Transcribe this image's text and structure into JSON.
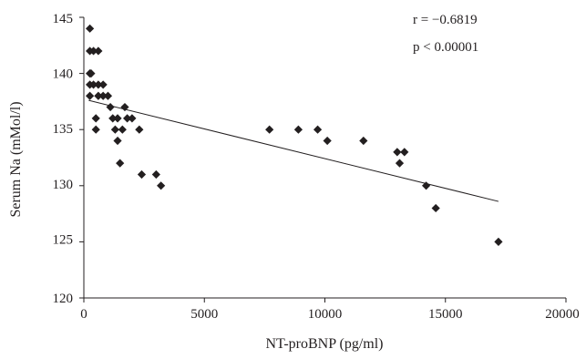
{
  "chart_data": {
    "type": "scatter",
    "xlabel": "NT-proBNP (pg/ml)",
    "ylabel": "Serum Na (mMol/l)",
    "xlim": [
      0,
      20000
    ],
    "ylim": [
      120,
      145
    ],
    "x_ticks": [
      "0",
      "5000",
      "10000",
      "15000",
      "20000"
    ],
    "y_ticks": [
      "120",
      "125",
      "130",
      "135",
      "140",
      "145"
    ],
    "grid": false,
    "legend": "none",
    "marker": "diamond",
    "marker_color": "#231f20",
    "annotations": [
      "r = −0.6819",
      "p < 0.00001"
    ],
    "trendline": {
      "type": "linear",
      "x": [
        200,
        17200
      ],
      "y": [
        137.6,
        128.6
      ]
    },
    "series": [
      {
        "points": [
          [
            250,
            144
          ],
          [
            250,
            142
          ],
          [
            250,
            140
          ],
          [
            250,
            139
          ],
          [
            250,
            138
          ],
          [
            300,
            140
          ],
          [
            400,
            142
          ],
          [
            400,
            139
          ],
          [
            500,
            136
          ],
          [
            500,
            135
          ],
          [
            600,
            142
          ],
          [
            600,
            139
          ],
          [
            600,
            138
          ],
          [
            800,
            139
          ],
          [
            800,
            138
          ],
          [
            1000,
            138
          ],
          [
            1100,
            137
          ],
          [
            1200,
            136
          ],
          [
            1300,
            135
          ],
          [
            1400,
            134
          ],
          [
            1400,
            136
          ],
          [
            1500,
            132
          ],
          [
            1600,
            135
          ],
          [
            1700,
            137
          ],
          [
            1800,
            136
          ],
          [
            2000,
            136
          ],
          [
            2300,
            135
          ],
          [
            2400,
            131
          ],
          [
            3000,
            131
          ],
          [
            3200,
            130
          ],
          [
            7700,
            135
          ],
          [
            8900,
            135
          ],
          [
            9700,
            135
          ],
          [
            10100,
            134
          ],
          [
            11600,
            134
          ],
          [
            13000,
            133
          ],
          [
            13100,
            132
          ],
          [
            13300,
            133
          ],
          [
            14200,
            130
          ],
          [
            14600,
            128
          ],
          [
            17200,
            125
          ]
        ]
      }
    ]
  }
}
